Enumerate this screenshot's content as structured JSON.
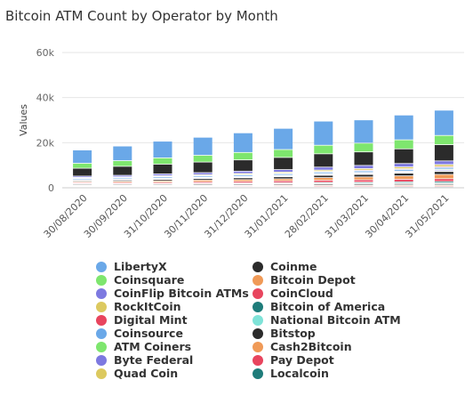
{
  "chart_data": {
    "type": "bar",
    "stacked": true,
    "title": "Bitcoin ATM Count by Operator by Month",
    "xlabel": "",
    "ylabel": "Values",
    "ylim": [
      0,
      60000
    ],
    "yticks": [
      0,
      20000,
      40000,
      60000
    ],
    "ytick_labels": [
      "0",
      "20k",
      "40k",
      "60k"
    ],
    "grid": true,
    "legend_position": "bottom",
    "categories": [
      "30/08/2020",
      "30/09/2020",
      "31/10/2020",
      "30/11/2020",
      "31/12/2020",
      "31/01/2021",
      "28/02/2021",
      "31/03/2021",
      "30/04/2021",
      "31/05/2021"
    ],
    "series": [
      {
        "name": "Localcoin",
        "color": "#1e7c7a",
        "values": [
          300,
          300,
          300,
          300,
          300,
          300,
          300,
          300,
          350,
          350
        ]
      },
      {
        "name": "Pay Depot",
        "color": "#e8455e",
        "values": [
          300,
          300,
          300,
          300,
          350,
          350,
          400,
          400,
          400,
          400
        ]
      },
      {
        "name": "Cash2Bitcoin",
        "color": "#f09a57",
        "values": [
          300,
          300,
          300,
          300,
          300,
          350,
          350,
          350,
          400,
          400
        ]
      },
      {
        "name": "Bitstop",
        "color": "#2b2b2b",
        "values": [
          400,
          400,
          400,
          450,
          450,
          450,
          500,
          500,
          500,
          500
        ]
      },
      {
        "name": "National Bitcoin ATM",
        "color": "#7fe3d8",
        "values": [
          200,
          200,
          200,
          250,
          250,
          300,
          300,
          350,
          350,
          400
        ]
      },
      {
        "name": "Bitcoin of America",
        "color": "#1e7c7a",
        "values": [
          300,
          300,
          300,
          300,
          300,
          350,
          400,
          450,
          500,
          600
        ]
      },
      {
        "name": "CoinCloud",
        "color": "#e8455e",
        "values": [
          400,
          450,
          500,
          600,
          700,
          800,
          900,
          1000,
          1100,
          1200
        ]
      },
      {
        "name": "Bitcoin Depot",
        "color": "#f09a57",
        "values": [
          400,
          500,
          600,
          700,
          800,
          900,
          1200,
          1300,
          1500,
          1900
        ]
      },
      {
        "name": "Coinme",
        "color": "#2b2b2b",
        "values": [
          400,
          500,
          600,
          700,
          800,
          900,
          1000,
          1100,
          1200,
          1300
        ]
      },
      {
        "name": "Quad Coin",
        "color": "#dcc95f",
        "values": [
          100,
          100,
          150,
          150,
          150,
          200,
          200,
          250,
          250,
          300
        ]
      },
      {
        "name": "Byte Federal",
        "color": "#7d79e0",
        "values": [
          200,
          200,
          250,
          250,
          300,
          300,
          350,
          350,
          400,
          450
        ]
      },
      {
        "name": "ATM Coiners",
        "color": "#7ee66e",
        "values": [
          100,
          100,
          150,
          150,
          150,
          200,
          250,
          300,
          300,
          350
        ]
      },
      {
        "name": "Coinsource",
        "color": "#6aa8e8",
        "values": [
          500,
          500,
          550,
          550,
          600,
          600,
          650,
          650,
          700,
          700
        ]
      },
      {
        "name": "Digital Mint",
        "color": "#e8455e",
        "values": [
          200,
          200,
          250,
          250,
          300,
          300,
          300,
          350,
          350,
          400
        ]
      },
      {
        "name": "RockItCoin",
        "color": "#dcc95f",
        "values": [
          300,
          300,
          350,
          400,
          450,
          500,
          600,
          700,
          800,
          900
        ]
      },
      {
        "name": "CoinFlip Bitcoin ATMs",
        "color": "#7d79e0",
        "values": [
          600,
          700,
          800,
          900,
          1000,
          1100,
          1300,
          1400,
          1500,
          1600
        ]
      },
      {
        "name": "Bitstop",
        "color": "#2b2b2b",
        "values": [
          3500,
          4000,
          4300,
          4700,
          5000,
          5400,
          5900,
          6000,
          6500,
          7200
        ]
      },
      {
        "name": "Coinsquare",
        "color": "#7ee66e",
        "values": [
          2200,
          2500,
          2800,
          3000,
          3300,
          3500,
          3800,
          3900,
          4000,
          4100
        ]
      },
      {
        "name": "LibertyX",
        "color": "#6aa8e8",
        "values": [
          5900,
          6500,
          7400,
          8000,
          8700,
          9400,
          10700,
          10300,
          11000,
          11200
        ]
      }
    ]
  },
  "legend": {
    "left": [
      {
        "label": "LibertyX",
        "color": "#6aa8e8"
      },
      {
        "label": "Coinsquare",
        "color": "#7ee66e"
      },
      {
        "label": "CoinFlip Bitcoin ATMs",
        "color": "#7d79e0"
      },
      {
        "label": "RockItCoin",
        "color": "#dcc95f"
      },
      {
        "label": "Digital Mint",
        "color": "#e8455e"
      },
      {
        "label": "Coinsource",
        "color": "#6aa8e8"
      },
      {
        "label": "ATM Coiners",
        "color": "#7ee66e"
      },
      {
        "label": "Byte Federal",
        "color": "#7d79e0"
      },
      {
        "label": "Quad Coin",
        "color": "#dcc95f"
      }
    ],
    "right": [
      {
        "label": "Coinme",
        "color": "#2b2b2b"
      },
      {
        "label": "Bitcoin Depot",
        "color": "#f09a57"
      },
      {
        "label": "CoinCloud",
        "color": "#e8455e"
      },
      {
        "label": "Bitcoin of America",
        "color": "#1e7c7a"
      },
      {
        "label": "National Bitcoin ATM",
        "color": "#7fe3d8"
      },
      {
        "label": "Bitstop",
        "color": "#2b2b2b"
      },
      {
        "label": "Cash2Bitcoin",
        "color": "#f09a57"
      },
      {
        "label": "Pay Depot",
        "color": "#e8455e"
      },
      {
        "label": "Localcoin",
        "color": "#1e7c7a"
      }
    ]
  }
}
